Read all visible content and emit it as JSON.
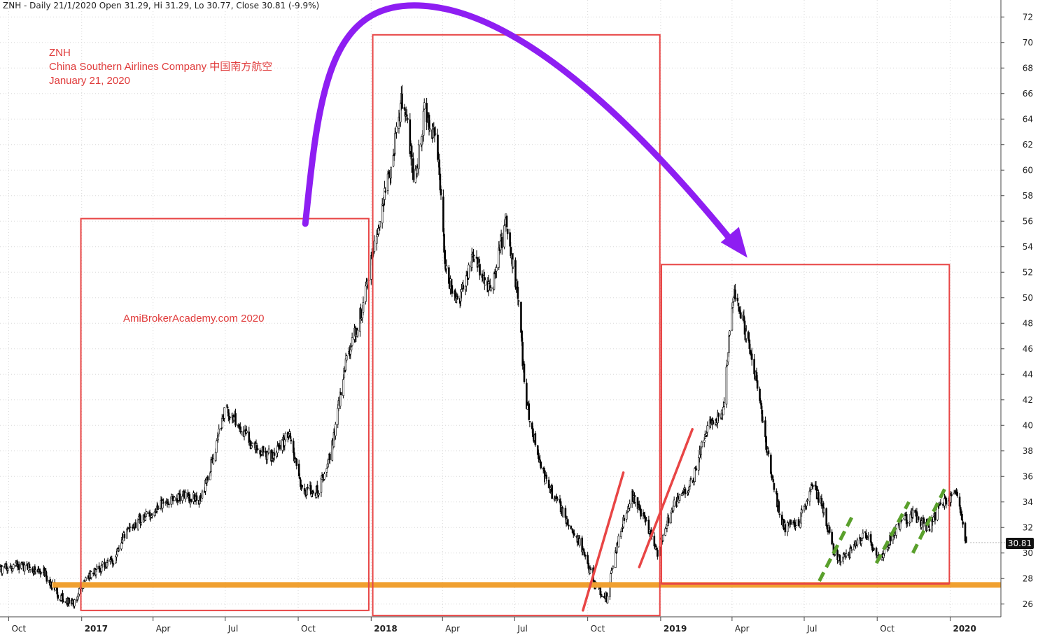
{
  "header": {
    "text": "ZNH - Daily 21/1/2020 Open 31.29, Hi 31.29, Lo 30.77, Close 30.81 (-9.9%)"
  },
  "annotations": {
    "ticker": "ZNH",
    "company": "China Southern Airlines Company  中国南方航空",
    "date": "January 21, 2020",
    "watermark": "AmiBrokerAcademy.com   2020"
  },
  "price_tag": "30.81",
  "colors": {
    "box": "#e84545",
    "support": "#f0a030",
    "arc": "#8e1ef2",
    "trend": "#e84545",
    "dash": "#5aa02c",
    "candle": "#000000",
    "grid": "#d8d8d8"
  },
  "chart_data": {
    "type": "candlestick",
    "symbol": "ZNH",
    "interval": "Daily",
    "ylim": [
      25,
      73
    ],
    "y_ticks": [
      26,
      28,
      30,
      32,
      34,
      36,
      38,
      40,
      42,
      44,
      46,
      48,
      50,
      52,
      54,
      56,
      58,
      60,
      62,
      64,
      66,
      68,
      70,
      72
    ],
    "x_ticks": [
      {
        "label": "Oct",
        "date": "2016-10-01",
        "bold": false
      },
      {
        "label": "2017",
        "date": "2017-01-01",
        "bold": true
      },
      {
        "label": "Apr",
        "date": "2017-04-01",
        "bold": false
      },
      {
        "label": "Jul",
        "date": "2017-07-01",
        "bold": false
      },
      {
        "label": "Oct",
        "date": "2017-10-01",
        "bold": false
      },
      {
        "label": "2018",
        "date": "2018-01-01",
        "bold": true
      },
      {
        "label": "Apr",
        "date": "2018-04-01",
        "bold": false
      },
      {
        "label": "Jul",
        "date": "2018-07-01",
        "bold": false
      },
      {
        "label": "Oct",
        "date": "2018-10-01",
        "bold": false
      },
      {
        "label": "2019",
        "date": "2019-01-01",
        "bold": true
      },
      {
        "label": "Apr",
        "date": "2019-04-01",
        "bold": false
      },
      {
        "label": "Jul",
        "date": "2019-07-01",
        "bold": false
      },
      {
        "label": "Oct",
        "date": "2019-10-01",
        "bold": false
      },
      {
        "label": "2020",
        "date": "2020-01-01",
        "bold": true
      }
    ],
    "xlim": [
      "2016-09-20",
      "2020-03-05"
    ],
    "last_bar": {
      "date": "2020-01-21",
      "open": 31.29,
      "high": 31.29,
      "low": 30.77,
      "close": 30.81,
      "change_pct": -9.9
    },
    "price_path": [
      [
        "2016-09-20",
        28.8
      ],
      [
        "2016-10-15",
        29.0
      ],
      [
        "2016-11-15",
        28.4
      ],
      [
        "2016-12-05",
        26.5
      ],
      [
        "2016-12-20",
        26.0
      ],
      [
        "2017-01-10",
        28.2
      ],
      [
        "2017-02-10",
        29.5
      ],
      [
        "2017-03-01",
        32.0
      ],
      [
        "2017-04-10",
        33.8
      ],
      [
        "2017-05-05",
        34.5
      ],
      [
        "2017-06-01",
        34.2
      ],
      [
        "2017-06-20",
        38.5
      ],
      [
        "2017-07-01",
        41.5
      ],
      [
        "2017-07-20",
        39.8
      ],
      [
        "2017-08-10",
        38.0
      ],
      [
        "2017-09-01",
        37.5
      ],
      [
        "2017-09-20",
        39.5
      ],
      [
        "2017-10-05",
        35.0
      ],
      [
        "2017-10-25",
        34.8
      ],
      [
        "2017-11-10",
        37.5
      ],
      [
        "2017-12-01",
        45.0
      ],
      [
        "2017-12-20",
        49.0
      ],
      [
        "2018-01-05",
        54.0
      ],
      [
        "2018-01-25",
        60.0
      ],
      [
        "2018-02-10",
        66.0
      ],
      [
        "2018-02-25",
        59.0
      ],
      [
        "2018-03-10",
        65.0
      ],
      [
        "2018-03-25",
        62.0
      ],
      [
        "2018-04-05",
        52.0
      ],
      [
        "2018-04-20",
        49.5
      ],
      [
        "2018-05-10",
        53.5
      ],
      [
        "2018-06-01",
        50.5
      ],
      [
        "2018-06-20",
        56.0
      ],
      [
        "2018-07-05",
        50.0
      ],
      [
        "2018-07-15",
        42.0
      ],
      [
        "2018-07-25",
        39.0
      ],
      [
        "2018-08-10",
        35.5
      ],
      [
        "2018-09-01",
        33.0
      ],
      [
        "2018-09-20",
        31.0
      ],
      [
        "2018-10-10",
        27.5
      ],
      [
        "2018-10-25",
        26.5
      ],
      [
        "2018-11-10",
        31.5
      ],
      [
        "2018-11-25",
        34.5
      ],
      [
        "2018-12-10",
        33.0
      ],
      [
        "2018-12-28",
        30.0
      ],
      [
        "2019-01-15",
        33.5
      ],
      [
        "2019-02-10",
        35.5
      ],
      [
        "2019-03-01",
        40.0
      ],
      [
        "2019-03-20",
        41.0
      ],
      [
        "2019-04-03",
        50.5
      ],
      [
        "2019-04-20",
        47.0
      ],
      [
        "2019-05-05",
        42.5
      ],
      [
        "2019-05-20",
        36.0
      ],
      [
        "2019-06-05",
        32.0
      ],
      [
        "2019-06-25",
        32.5
      ],
      [
        "2019-07-10",
        35.5
      ],
      [
        "2019-07-25",
        33.5
      ],
      [
        "2019-08-10",
        29.5
      ],
      [
        "2019-08-25",
        29.8
      ],
      [
        "2019-09-15",
        31.5
      ],
      [
        "2019-10-05",
        29.5
      ],
      [
        "2019-10-25",
        32.0
      ],
      [
        "2019-11-15",
        33.0
      ],
      [
        "2019-12-05",
        32.0
      ],
      [
        "2019-12-20",
        33.8
      ],
      [
        "2020-01-10",
        34.8
      ],
      [
        "2020-01-21",
        30.81
      ]
    ],
    "overlays": {
      "support_line": {
        "y": 27.5,
        "from": "2016-11-25",
        "to": "2020-03-05"
      },
      "boxes": [
        {
          "from": "2016-12-31",
          "to": "2017-12-29",
          "low": 25.5,
          "high": 56.2
        },
        {
          "from": "2018-01-03",
          "to": "2018-12-31",
          "low": 25.1,
          "high": 70.6
        },
        {
          "from": "2019-01-02",
          "to": "2019-12-31",
          "low": 27.6,
          "high": 52.6
        }
      ],
      "trend_lines": [
        {
          "x1": "2018-09-25",
          "y1": 25.5,
          "x2": "2018-11-15",
          "y2": 36.3
        },
        {
          "x1": "2018-12-05",
          "y1": 28.9,
          "x2": "2019-02-10",
          "y2": 39.7
        }
      ],
      "dashed_lines": [
        {
          "x1": "2019-07-20",
          "y1": 27.8,
          "x2": "2019-08-30",
          "y2": 32.8
        },
        {
          "x1": "2019-09-30",
          "y1": 29.2,
          "x2": "2019-11-10",
          "y2": 34.0
        },
        {
          "x1": "2019-11-15",
          "y1": 30.0,
          "x2": "2019-12-25",
          "y2": 35.0
        }
      ],
      "arc_arrow": {
        "start": [
          "2017-10-10",
          55.8
        ],
        "peak": [
          "2018-03-20",
          72.8
        ],
        "end": [
          "2019-04-15",
          52.7
        ]
      }
    }
  }
}
